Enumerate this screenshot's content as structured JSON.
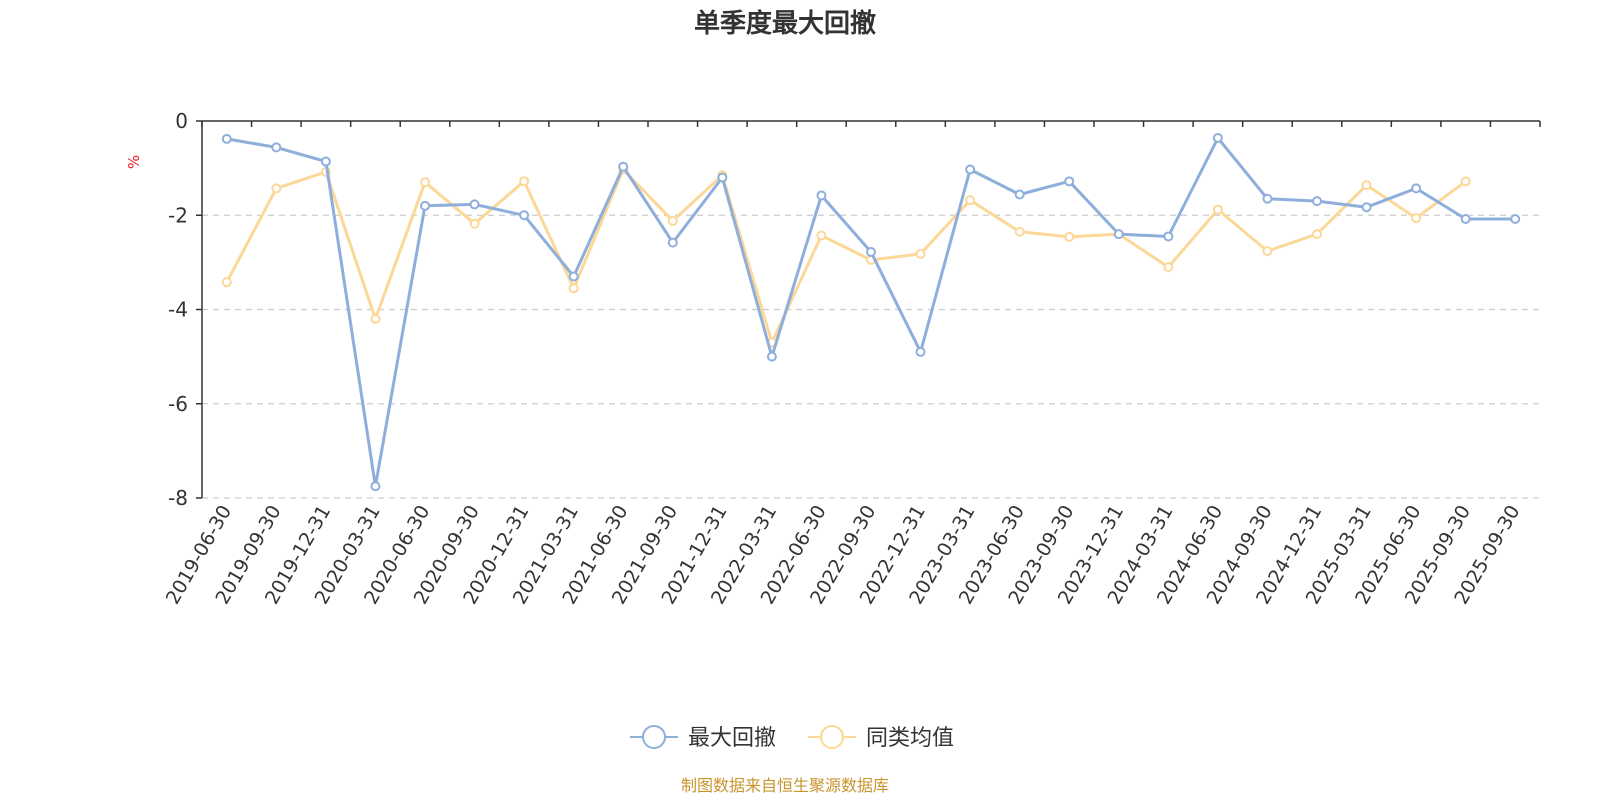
{
  "chart_data": {
    "type": "line",
    "title": "单季度最大回撤",
    "ylabel": "%",
    "xlabel": "",
    "ylim": [
      -8,
      0
    ],
    "yticks": [
      0,
      -2,
      -4,
      -6,
      -8
    ],
    "categories": [
      "2019-06-30",
      "2019-09-30",
      "2019-12-31",
      "2020-03-31",
      "2020-06-30",
      "2020-09-30",
      "2020-12-31",
      "2021-03-31",
      "2021-06-30",
      "2021-09-30",
      "2021-12-31",
      "2022-03-31",
      "2022-06-30",
      "2022-09-30",
      "2022-12-31",
      "2023-03-31",
      "2023-06-30",
      "2023-09-30",
      "2023-12-31",
      "2024-03-31",
      "2024-06-30",
      "2024-09-30",
      "2024-12-31",
      "2025-03-31",
      "2025-06-30",
      "2025-09-30",
      "2025-09-30"
    ],
    "series": [
      {
        "name": "最大回撤",
        "color": "#8eaedb",
        "values": [
          -0.38,
          -0.56,
          -0.86,
          -7.75,
          -1.8,
          -1.77,
          -2.0,
          -3.3,
          -0.97,
          -2.58,
          -1.2,
          -5.0,
          -1.58,
          -2.78,
          -4.9,
          -1.03,
          -1.56,
          -1.28,
          -2.4,
          -2.45,
          -0.36,
          -1.65,
          -1.7,
          -1.83,
          -1.43,
          -2.08,
          -2.08
        ]
      },
      {
        "name": "同类均值",
        "color": "#fcd898",
        "values": [
          -3.42,
          -1.43,
          -1.08,
          -4.2,
          -1.3,
          -2.18,
          -1.28,
          -3.55,
          -1.03,
          -2.12,
          -1.15,
          -4.7,
          -2.43,
          -2.95,
          -2.82,
          -1.68,
          -2.35,
          -2.46,
          -2.4,
          -3.1,
          -1.88,
          -2.76,
          -2.4,
          -1.36,
          -2.06,
          -1.28,
          null
        ]
      }
    ],
    "legend_position": "bottom-center",
    "grid": true
  },
  "colors": {
    "unit": "#e8202a",
    "source": "#c8952c",
    "axis": "#333333",
    "grid": "#cccccc"
  },
  "source_text": "制图数据来自恒生聚源数据库"
}
